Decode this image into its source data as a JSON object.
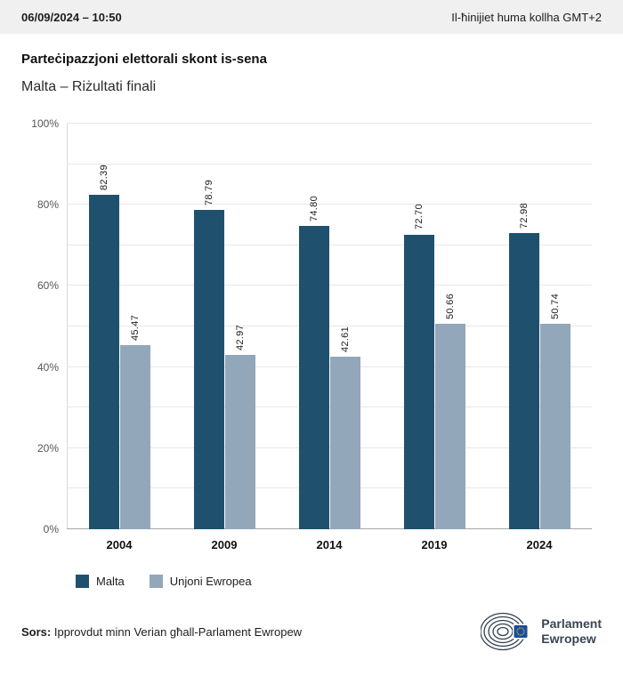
{
  "header": {
    "datetime": "06/09/2024 – 10:50",
    "timezone_note": "Il-ħinijiet huma kollha GMT+2"
  },
  "title": "Parteċipazzjoni elettorali skont is-sena",
  "subtitle": "Malta – Riżultati finali",
  "chart_data": {
    "type": "bar",
    "title": "Parteċipazzjoni elettorali skont is-sena",
    "subtitle": "Malta – Riżultati finali",
    "categories": [
      "2004",
      "2009",
      "2014",
      "2019",
      "2024"
    ],
    "series": [
      {
        "name": "Malta",
        "color": "#1f516f",
        "values": [
          82.39,
          78.79,
          74.8,
          72.7,
          72.98
        ]
      },
      {
        "name": "Unjoni Ewropea",
        "color": "#92a7b9",
        "values": [
          45.47,
          42.97,
          42.61,
          50.66,
          50.74
        ]
      }
    ],
    "ylim": [
      0,
      100
    ],
    "ytick_interval": 10,
    "ytick_label_interval": 20,
    "ytick_suffix": "%",
    "grid": true,
    "legend_position": "bottom",
    "value_label_decimals": 2
  },
  "footer": {
    "source_label": "Sors:",
    "source_text": "Ipprovdut minn Verian għall-Parlament Ewropew"
  },
  "logo": {
    "line1": "Parlament",
    "line2": "Ewropew",
    "mark_color": "#33414f",
    "flag_blue": "#1b4c9b",
    "flag_star_yellow": "#ffd617"
  }
}
